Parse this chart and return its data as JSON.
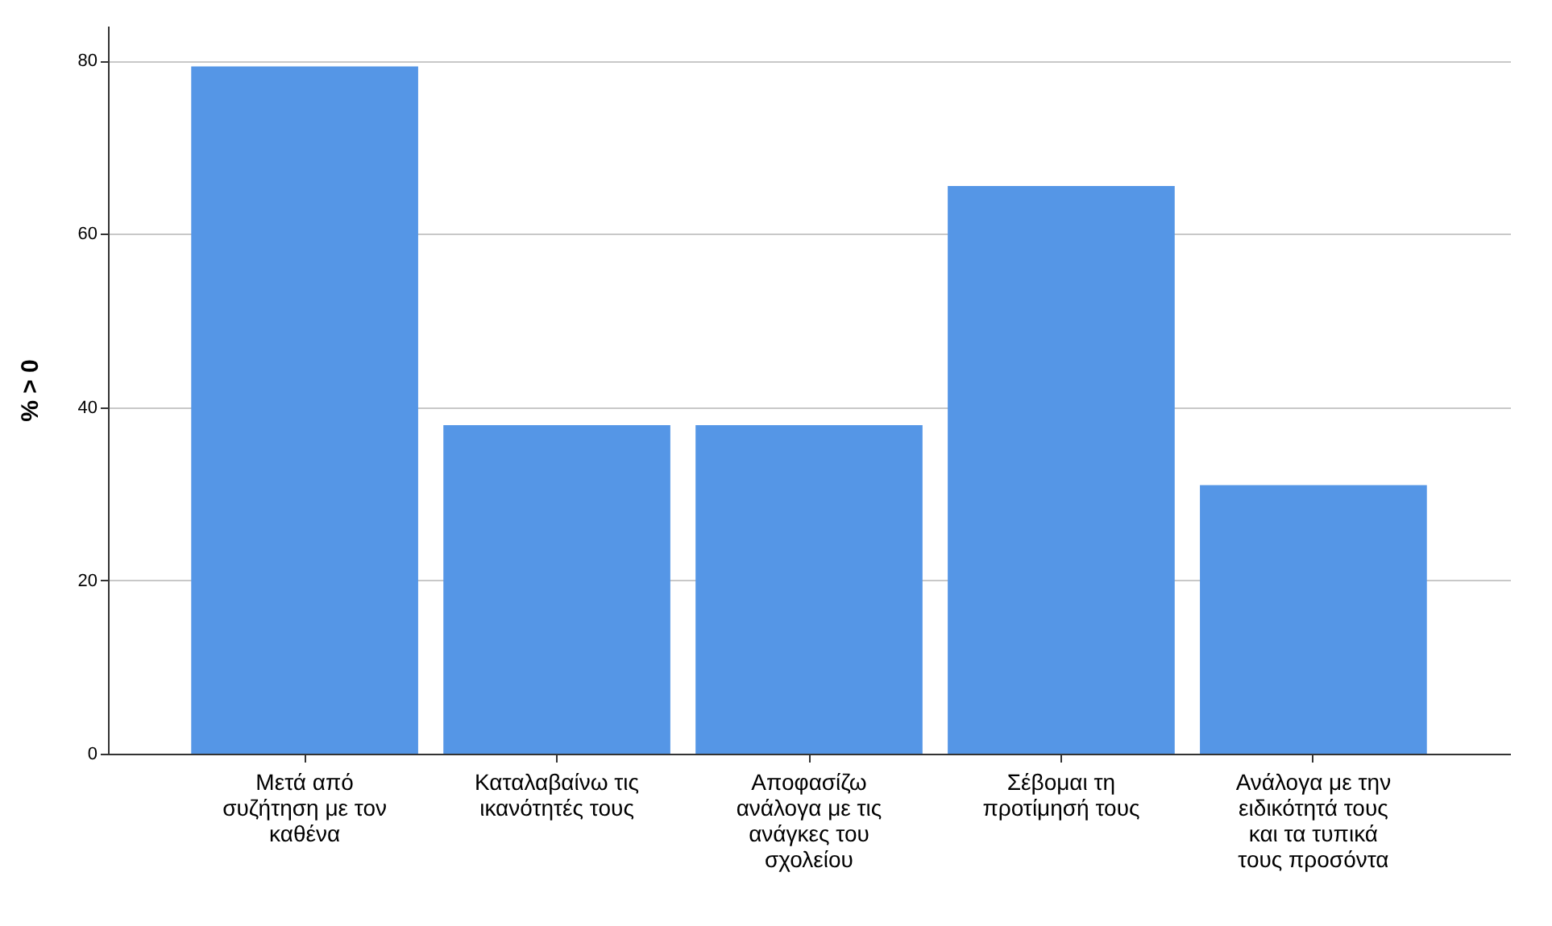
{
  "chart_data": {
    "type": "bar",
    "ylabel": "% > 0",
    "categories": [
      "Μετά από συζήτηση με τον καθένα",
      "Καταλαβαίνω τις ικανότητές τους",
      "Αποφασίζω ανάλογα με τις ανάγκες του σχολείου",
      "Σέβομαι τη προτίμησή τους",
      "Ανάλογα με την ειδικότητά τους και τα τυπικά τους προσόντα"
    ],
    "values": [
      79.3,
      37.9,
      37.9,
      65.5,
      31.0
    ],
    "color": "#5596e6",
    "ylim": [
      0,
      84
    ],
    "yticks": [
      0,
      20,
      40,
      60,
      80
    ],
    "grid": "y"
  }
}
